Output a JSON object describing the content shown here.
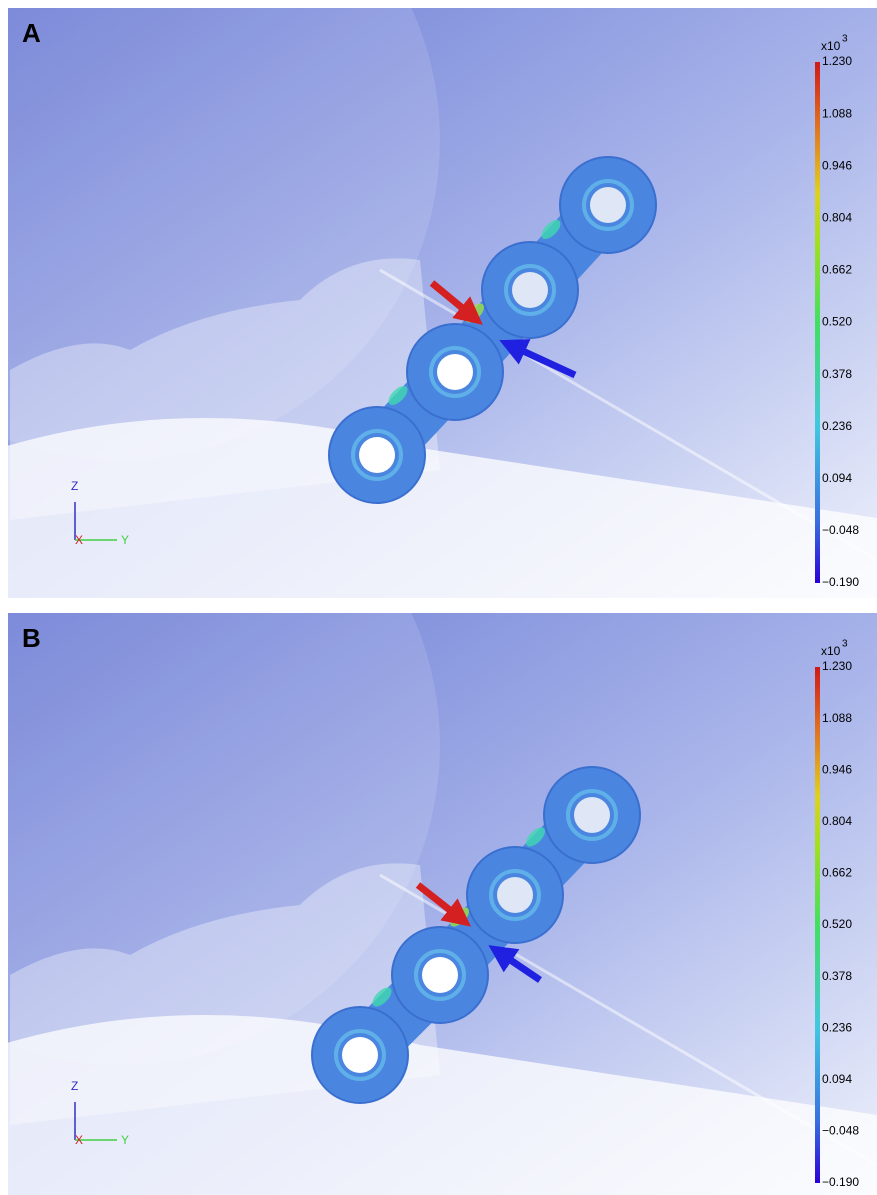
{
  "panels": [
    {
      "label": "A",
      "colorbar": {
        "multiplier": "x10",
        "exponent": "3",
        "ticks": [
          "1.230",
          "1.088",
          "0.946",
          "0.804",
          "0.662",
          "0.520",
          "0.378",
          "0.236",
          "0.094",
          "−0.048",
          "−0.190"
        ]
      },
      "axes": {
        "z": "Z",
        "x": "X",
        "y": "Y"
      }
    },
    {
      "label": "B",
      "colorbar": {
        "multiplier": "x10",
        "exponent": "3",
        "ticks": [
          "1.230",
          "1.088",
          "0.946",
          "0.804",
          "0.662",
          "0.520",
          "0.378",
          "0.236",
          "0.094",
          "−0.048",
          "−0.190"
        ]
      },
      "axes": {
        "z": "Z",
        "x": "X",
        "y": "Y"
      }
    }
  ]
}
